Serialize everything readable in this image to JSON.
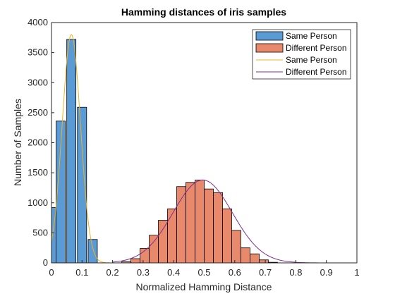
{
  "chart_data": {
    "type": "bar",
    "title": "Hamming distances of iris samples",
    "xlabel": "Normalized Hamming Distance",
    "ylabel": "Number of Samples",
    "xlim": [
      0,
      1
    ],
    "ylim": [
      0,
      4000
    ],
    "xticks": [
      "0",
      "0.1",
      "0.2",
      "0.3",
      "0.4",
      "0.5",
      "0.6",
      "0.7",
      "0.8",
      "0.9",
      "1"
    ],
    "yticks": [
      "0",
      "500",
      "1000",
      "1500",
      "2000",
      "2500",
      "3000",
      "3500",
      "4000"
    ],
    "grid": false,
    "legend_position": "top-right",
    "series": [
      {
        "name": "Same Person",
        "kind": "histogram",
        "color": "#5b9bd5",
        "bin_width": 0.03,
        "bins": [
          {
            "x": 0.0,
            "y": 920
          },
          {
            "x": 0.015,
            "y": 2360
          },
          {
            "x": 0.05,
            "y": 3720
          },
          {
            "x": 0.085,
            "y": 2590
          },
          {
            "x": 0.12,
            "y": 390
          }
        ]
      },
      {
        "name": "Different Person",
        "kind": "histogram",
        "color": "#e8896b",
        "bin_width": 0.03,
        "bins": [
          {
            "x": 0.23,
            "y": 20
          },
          {
            "x": 0.26,
            "y": 70
          },
          {
            "x": 0.29,
            "y": 240
          },
          {
            "x": 0.32,
            "y": 460
          },
          {
            "x": 0.35,
            "y": 710
          },
          {
            "x": 0.38,
            "y": 900
          },
          {
            "x": 0.41,
            "y": 1270
          },
          {
            "x": 0.44,
            "y": 1340
          },
          {
            "x": 0.47,
            "y": 1380
          },
          {
            "x": 0.5,
            "y": 1230
          },
          {
            "x": 0.53,
            "y": 1170
          },
          {
            "x": 0.56,
            "y": 900
          },
          {
            "x": 0.59,
            "y": 540
          },
          {
            "x": 0.62,
            "y": 250
          },
          {
            "x": 0.65,
            "y": 150
          },
          {
            "x": 0.68,
            "y": 50
          },
          {
            "x": 0.71,
            "y": 10
          }
        ]
      },
      {
        "name": "Same Person",
        "kind": "curve",
        "color": "#edb120",
        "mean": 0.065,
        "sd": 0.03,
        "peak": 3800,
        "x_range": [
          0,
          0.2
        ]
      },
      {
        "name": "Different Person",
        "kind": "curve",
        "color": "#7e2f8e",
        "mean": 0.495,
        "sd": 0.097,
        "peak": 1380,
        "x_range": [
          0.2,
          1
        ]
      }
    ]
  }
}
